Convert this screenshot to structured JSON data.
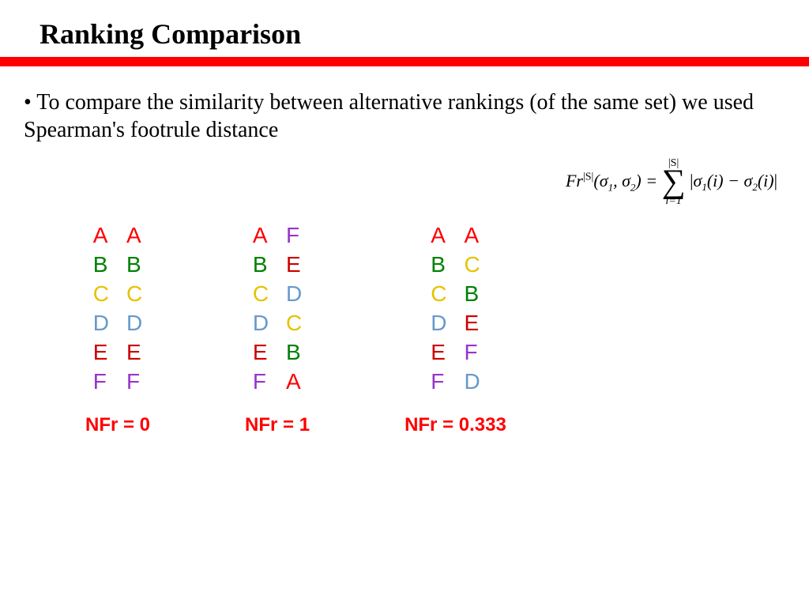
{
  "title": "Ranking Comparison",
  "bullet": "• To compare the similarity between alternative rankings (of the same set) we used Spearman's footrule distance",
  "letter_colors": {
    "A": "#ff0000",
    "B": "#008000",
    "C": "#e6c200",
    "D": "#6699cc",
    "E": "#cc0000",
    "F": "#9933cc"
  },
  "rank_letter_fontsize": 28,
  "title_fontsize": 36,
  "bullet_fontsize": 28,
  "nfr_fontsize": 24,
  "nfr_color": "#ff0000",
  "rule_color": "#ff0000",
  "background_color": "#ffffff",
  "blocks": [
    {
      "left": [
        "A",
        "B",
        "C",
        "D",
        "E",
        "F"
      ],
      "right": [
        "A",
        "B",
        "C",
        "D",
        "E",
        "F"
      ],
      "nfr": "NFr = 0"
    },
    {
      "left": [
        "A",
        "B",
        "C",
        "D",
        "E",
        "F"
      ],
      "right": [
        "F",
        "E",
        "D",
        "C",
        "B",
        "A"
      ],
      "nfr": "NFr = 1"
    },
    {
      "left": [
        "A",
        "B",
        "C",
        "D",
        "E",
        "F"
      ],
      "right": [
        "A",
        "C",
        "B",
        "E",
        "F",
        "D"
      ],
      "nfr": "NFr = 0.333"
    }
  ],
  "formula": {
    "lhs_prefix": "Fr",
    "lhs_sup": "|S|",
    "lhs_args": "(σ₁, σ₂)",
    "eq": " = ",
    "sum_upper": "|S|",
    "sum_lower": "i=1",
    "rhs": "|σ₁(i) − σ₂(i)|"
  }
}
